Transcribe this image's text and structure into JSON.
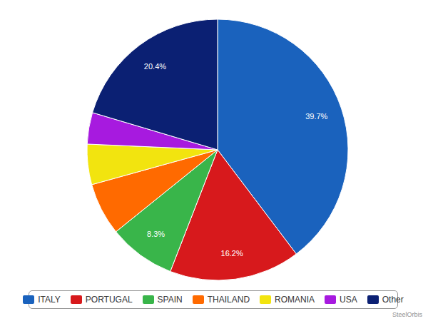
{
  "chart_data": {
    "type": "pie",
    "categories": [
      "ITALY",
      "PORTUGAL",
      "SPAIN",
      "THAILAND",
      "ROMANIA",
      "USA",
      "Other"
    ],
    "values": [
      39.7,
      16.2,
      8.3,
      6.5,
      5.0,
      3.9,
      20.4
    ],
    "value_labels": [
      "39.7%",
      "16.2%",
      "8.3%",
      null,
      null,
      null,
      "20.4%"
    ],
    "colors": [
      "#1a62bd",
      "#d7191c",
      "#39b54a",
      "#ff6a00",
      "#f2e40f",
      "#a71adf",
      "#0b2073"
    ],
    "data_labels": true,
    "legend": "bottom",
    "annotations": [
      "SteelOrbis"
    ]
  }
}
